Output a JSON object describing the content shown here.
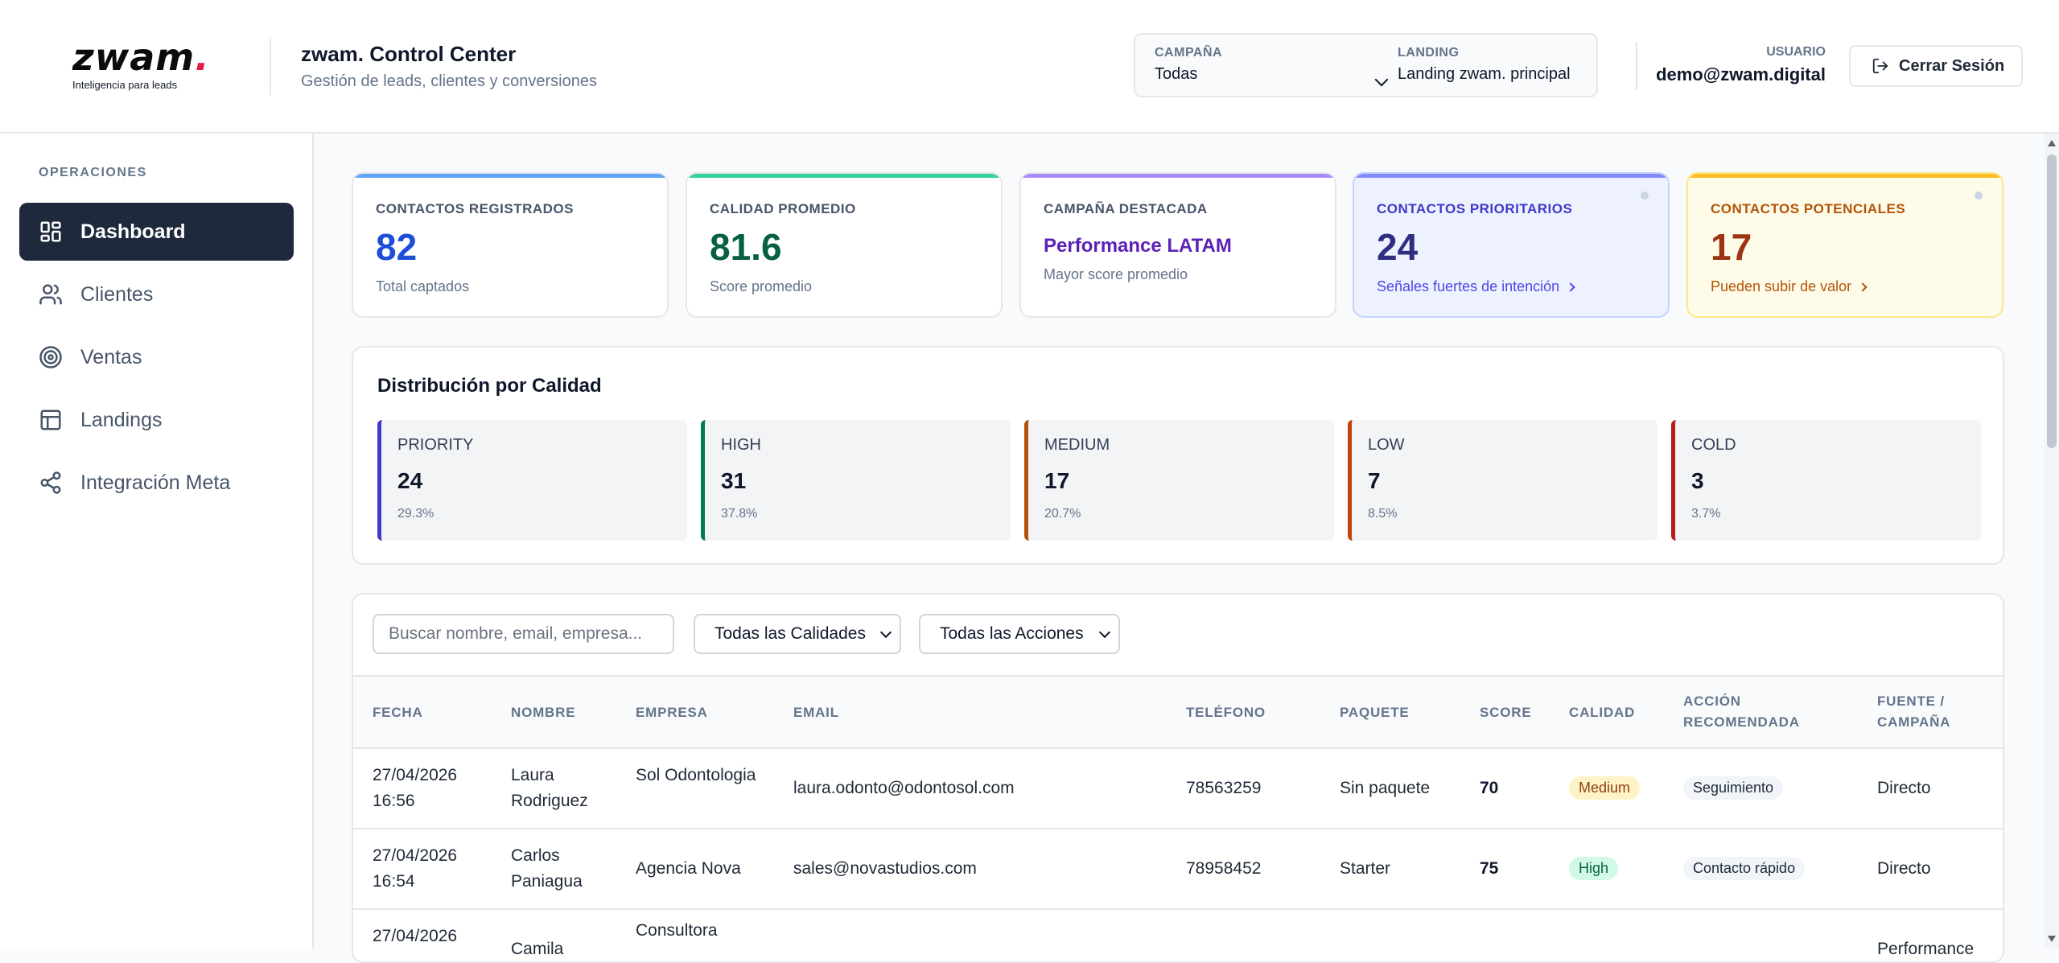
{
  "header": {
    "logo_word": "zwam",
    "logo_dot": ".",
    "logo_tagline": "Inteligencia para leads",
    "title": "zwam. Control Center",
    "subtitle": "Gestión de leads, clientes y conversiones",
    "campaign_label": "CAMPAÑA",
    "campaign_value": "Todas",
    "landing_label": "LANDING",
    "landing_value": "Landing zwam. principal",
    "user_label": "USUARIO",
    "user_value": "demo@zwam.digital",
    "logout_label": "Cerrar Sesión"
  },
  "sidebar": {
    "section_label": "OPERACIONES",
    "items": [
      {
        "label": "Dashboard",
        "icon": "grid-icon",
        "active": true
      },
      {
        "label": "Clientes",
        "icon": "users-icon",
        "active": false
      },
      {
        "label": "Ventas",
        "icon": "target-icon",
        "active": false
      },
      {
        "label": "Landings",
        "icon": "layout-icon",
        "active": false
      },
      {
        "label": "Integración Meta",
        "icon": "share-icon",
        "active": false
      }
    ]
  },
  "kpis": [
    {
      "label": "CONTACTOS REGISTRADOS",
      "value": "82",
      "sub": "Total captados",
      "accent": "#60a5fa",
      "value_color": "#1d4ed8"
    },
    {
      "label": "CALIDAD PROMEDIO",
      "value": "81.6",
      "sub": "Score promedio",
      "accent": "#34d399",
      "value_color": "#065f46"
    },
    {
      "label": "CAMPAÑA DESTACADA",
      "value": "Performance LATAM",
      "sub": "Mayor score promedio",
      "accent": "#a78bfa",
      "value_color": "#5b21b6"
    },
    {
      "label": "CONTACTOS PRIORITARIOS",
      "value": "24",
      "sub": "Señales fuertes de intención",
      "accent": "#818cf8",
      "value_color": "#312e81"
    },
    {
      "label": "CONTACTOS POTENCIALES",
      "value": "17",
      "sub": "Pueden subir de valor",
      "accent": "#fbbf24",
      "value_color": "#9a3412"
    }
  ],
  "distribution": {
    "title": "Distribución por Calidad",
    "items": [
      {
        "label": "PRIORITY",
        "value": "24",
        "pct": "29.3%",
        "color": "#4338ca"
      },
      {
        "label": "HIGH",
        "value": "31",
        "pct": "37.8%",
        "color": "#047857"
      },
      {
        "label": "MEDIUM",
        "value": "17",
        "pct": "20.7%",
        "color": "#b45309"
      },
      {
        "label": "LOW",
        "value": "7",
        "pct": "8.5%",
        "color": "#c2410c"
      },
      {
        "label": "COLD",
        "value": "3",
        "pct": "3.7%",
        "color": "#b91c1c"
      }
    ]
  },
  "filters": {
    "search_placeholder": "Buscar nombre, email, empresa...",
    "quality_value": "Todas las Calidades",
    "action_value": "Todas las Acciones"
  },
  "table": {
    "columns": [
      "FECHA",
      "NOMBRE",
      "EMPRESA",
      "EMAIL",
      "TELÉFONO",
      "PAQUETE",
      "SCORE",
      "CALIDAD",
      "ACCIÓN RECOMENDADA",
      "FUENTE / CAMPAÑA"
    ],
    "rows": [
      {
        "fecha": "27/04/2026 16:56",
        "nombre": "Laura Rodriguez",
        "empresa": "Sol Odontologia",
        "email": "laura.odonto@odontosol.com",
        "telefono": "78563259",
        "paquete": "Sin paquete",
        "score": "70",
        "calidad": "Medium",
        "accion": "Seguimiento",
        "fuente": "Directo"
      },
      {
        "fecha": "27/04/2026 16:54",
        "nombre": "Carlos Paniagua",
        "empresa": "Agencia Nova",
        "email": "sales@novastudios.com",
        "telefono": "78958452",
        "paquete": "Starter",
        "score": "75",
        "calidad": "High",
        "accion": "Contacto rápido",
        "fuente": "Directo"
      },
      {
        "fecha": "27/04/2026",
        "nombre": "Camila",
        "empresa": "Consultora",
        "email": "",
        "telefono": "",
        "paquete": "",
        "score": "",
        "calidad": "",
        "accion": "",
        "fuente": "Performance"
      }
    ]
  }
}
